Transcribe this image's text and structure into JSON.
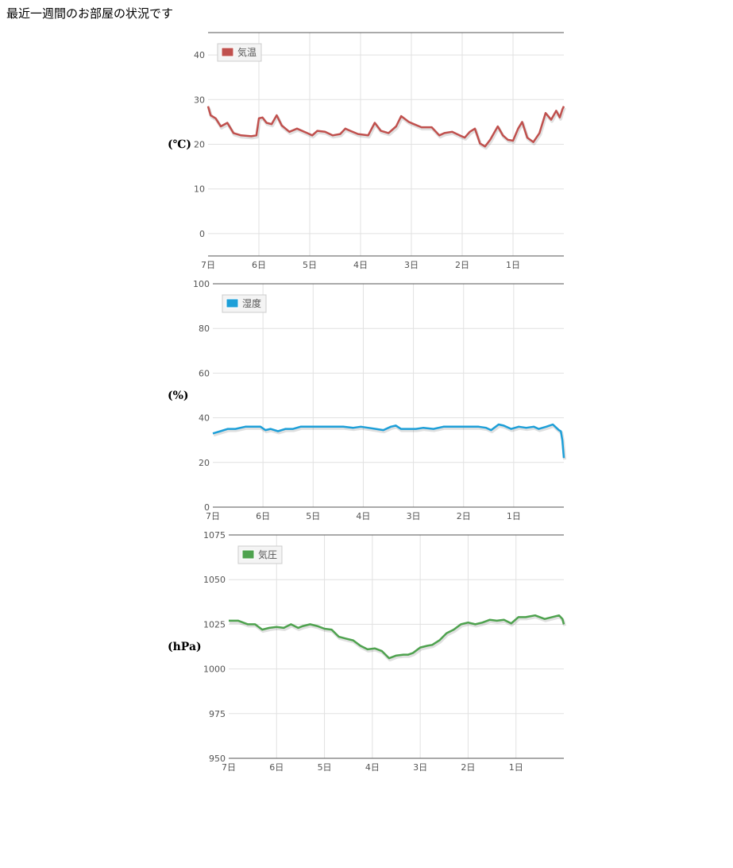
{
  "page": {
    "title": "最近一週間のお部屋の状況です"
  },
  "chart_data": [
    {
      "type": "line",
      "legend": "気温",
      "ylabel": "(℃)",
      "color": "#c0504d",
      "ylim": [
        -5,
        45
      ],
      "yticks": [
        0,
        10,
        20,
        30,
        40
      ],
      "xticks": [
        "7日",
        "6日",
        "5日",
        "4日",
        "3日",
        "2日",
        "1日"
      ],
      "xlim": [
        7,
        0
      ],
      "grid": true,
      "legend_position": "top-left",
      "x": [
        7.0,
        6.95,
        6.85,
        6.75,
        6.62,
        6.5,
        6.35,
        6.15,
        6.05,
        6.0,
        5.93,
        5.85,
        5.75,
        5.65,
        5.55,
        5.4,
        5.25,
        5.05,
        4.95,
        4.85,
        4.7,
        4.55,
        4.4,
        4.3,
        4.2,
        4.05,
        3.85,
        3.72,
        3.6,
        3.45,
        3.3,
        3.2,
        3.05,
        2.95,
        2.8,
        2.6,
        2.45,
        2.35,
        2.2,
        2.05,
        1.95,
        1.85,
        1.75,
        1.65,
        1.55,
        1.45,
        1.3,
        1.2,
        1.1,
        1.0,
        0.9,
        0.82,
        0.72,
        0.6,
        0.48,
        0.36,
        0.25,
        0.15,
        0.08,
        0.03,
        0.0
      ],
      "values": [
        28.5,
        26.5,
        25.8,
        24.0,
        24.8,
        22.5,
        22.0,
        21.8,
        22.0,
        25.8,
        26.0,
        24.8,
        24.5,
        26.5,
        24.2,
        22.8,
        23.5,
        22.5,
        22.0,
        23.0,
        22.8,
        22.0,
        22.3,
        23.5,
        23.0,
        22.3,
        22.0,
        24.8,
        23.0,
        22.5,
        24.0,
        26.3,
        25.0,
        24.5,
        23.8,
        23.8,
        22.0,
        22.5,
        22.8,
        22.0,
        21.5,
        22.8,
        23.5,
        20.2,
        19.5,
        21.0,
        24.0,
        22.0,
        21.0,
        20.8,
        23.5,
        25.0,
        21.5,
        20.5,
        22.5,
        27.0,
        25.5,
        27.5,
        26.0,
        27.8,
        28.5
      ]
    },
    {
      "type": "line",
      "legend": "湿度",
      "ylabel": "(%)",
      "color": "#1d9fd8",
      "ylim": [
        0,
        100
      ],
      "yticks": [
        0,
        20,
        40,
        60,
        80,
        100
      ],
      "xticks": [
        "7日",
        "6日",
        "5日",
        "4日",
        "3日",
        "2日",
        "1日"
      ],
      "xlim": [
        7,
        0
      ],
      "grid": true,
      "legend_position": "top-left",
      "x": [
        7.0,
        6.85,
        6.7,
        6.55,
        6.35,
        6.15,
        6.05,
        5.95,
        5.85,
        5.7,
        5.55,
        5.4,
        5.25,
        5.05,
        4.85,
        4.6,
        4.4,
        4.2,
        4.05,
        3.9,
        3.75,
        3.6,
        3.45,
        3.35,
        3.25,
        3.1,
        2.95,
        2.8,
        2.6,
        2.4,
        2.2,
        2.0,
        1.85,
        1.7,
        1.55,
        1.45,
        1.3,
        1.2,
        1.05,
        0.9,
        0.75,
        0.6,
        0.5,
        0.35,
        0.22,
        0.1,
        0.06,
        0.03,
        0.0
      ],
      "values": [
        33,
        34,
        35,
        35,
        36,
        36,
        36,
        34.5,
        35,
        34,
        35,
        35,
        36,
        36,
        36,
        36,
        36,
        35.5,
        36,
        35.5,
        35,
        34.5,
        36,
        36.5,
        35,
        35,
        35,
        35.5,
        35,
        36,
        36,
        36,
        36,
        36,
        35.5,
        34.5,
        37,
        36.5,
        35,
        36,
        35.5,
        36,
        35,
        36,
        37,
        34.5,
        34,
        30,
        22
      ]
    },
    {
      "type": "line",
      "legend": "気圧",
      "ylabel": "(hPa)",
      "color": "#4ea24e",
      "ylim": [
        950,
        1075
      ],
      "yticks": [
        950,
        975,
        1000,
        1025,
        1050,
        1075
      ],
      "xticks": [
        "7日",
        "6日",
        "5日",
        "4日",
        "3日",
        "2日",
        "1日"
      ],
      "xlim": [
        7,
        0
      ],
      "grid": true,
      "legend_position": "top-left",
      "x": [
        7.0,
        6.8,
        6.6,
        6.45,
        6.3,
        6.15,
        6.0,
        5.85,
        5.7,
        5.55,
        5.45,
        5.3,
        5.15,
        5.0,
        4.85,
        4.7,
        4.55,
        4.4,
        4.25,
        4.1,
        3.95,
        3.8,
        3.65,
        3.5,
        3.35,
        3.25,
        3.15,
        3.0,
        2.85,
        2.75,
        2.6,
        2.45,
        2.3,
        2.15,
        2.0,
        1.85,
        1.7,
        1.55,
        1.4,
        1.25,
        1.1,
        0.95,
        0.8,
        0.6,
        0.4,
        0.25,
        0.1,
        0.03,
        0.0
      ],
      "values": [
        1027,
        1027,
        1025,
        1025,
        1022,
        1023,
        1023.5,
        1023,
        1025,
        1023,
        1024,
        1025,
        1024,
        1022.5,
        1022,
        1018,
        1017,
        1016,
        1013,
        1011,
        1011.5,
        1010,
        1006,
        1007.5,
        1008,
        1008,
        1009,
        1012,
        1013,
        1013.5,
        1016,
        1020,
        1022,
        1025,
        1026,
        1025,
        1026,
        1027.5,
        1027,
        1027.5,
        1025.5,
        1029,
        1029,
        1030,
        1028,
        1029,
        1030,
        1028,
        1025
      ]
    }
  ]
}
